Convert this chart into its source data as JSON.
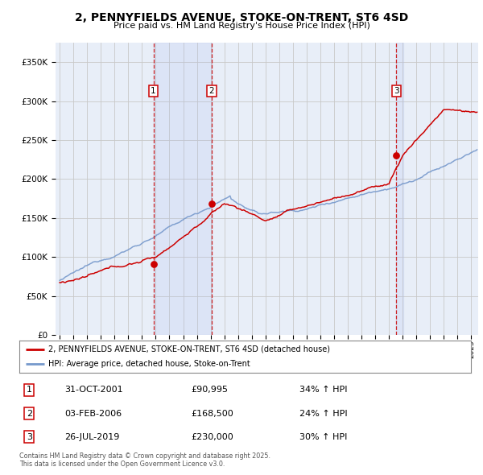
{
  "title": "2, PENNYFIELDS AVENUE, STOKE-ON-TRENT, ST6 4SD",
  "subtitle": "Price paid vs. HM Land Registry's House Price Index (HPI)",
  "red_label": "2, PENNYFIELDS AVENUE, STOKE-ON-TRENT, ST6 4SD (detached house)",
  "blue_label": "HPI: Average price, detached house, Stoke-on-Trent",
  "footer": "Contains HM Land Registry data © Crown copyright and database right 2025.\nThis data is licensed under the Open Government Licence v3.0.",
  "transactions": [
    {
      "num": 1,
      "date": "31-OCT-2001",
      "price": 90995,
      "hpi_pct": "34% ↑ HPI"
    },
    {
      "num": 2,
      "date": "03-FEB-2006",
      "price": 168500,
      "hpi_pct": "24% ↑ HPI"
    },
    {
      "num": 3,
      "date": "26-JUL-2019",
      "price": 230000,
      "hpi_pct": "30% ↑ HPI"
    }
  ],
  "sale_years": [
    2001.833,
    2006.083,
    2019.542
  ],
  "sale_prices": [
    90995,
    168500,
    230000
  ],
  "ylim": [
    0,
    375000
  ],
  "yticks": [
    0,
    50000,
    100000,
    150000,
    200000,
    250000,
    300000,
    350000
  ],
  "xlim_start": 1994.7,
  "xlim_end": 2025.5,
  "background_color": "#ffffff",
  "plot_bg_color": "#e8eef8",
  "grid_color": "#c8c8c8",
  "red_color": "#cc0000",
  "blue_color": "#7799cc"
}
